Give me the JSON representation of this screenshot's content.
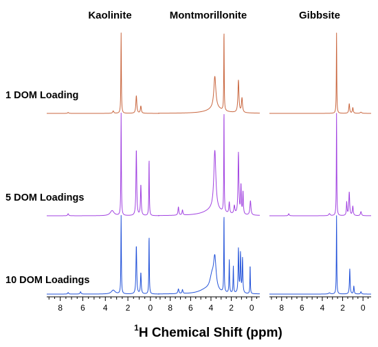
{
  "chart_data": {
    "type": "line",
    "figure_kind": "stacked 1H NMR spectra, 3 panels x 3 rows",
    "panels": [
      {
        "title": "Kaolinite"
      },
      {
        "title": "Montmorillonite"
      },
      {
        "title": "Gibbsite"
      }
    ],
    "rows": [
      {
        "label": "1 DOM Loading",
        "color": "#c8643c"
      },
      {
        "label": "5 DOM Loadings",
        "color": "#a040e0"
      },
      {
        "label": "10 DOM Loadings",
        "color": "#2050d8"
      }
    ],
    "x_axis": {
      "title_sup": "1",
      "title_main": "H Chemical Shift (ppm)",
      "range": [
        9.2,
        -0.8
      ],
      "reversed": true,
      "major_ticks": [
        "8",
        "6",
        "4",
        "2",
        "0"
      ]
    },
    "series": [
      {
        "panel": 0,
        "row": 0,
        "peaks": [
          {
            "x": 2.6,
            "h": 1.0,
            "w": 0.025
          },
          {
            "x": 1.25,
            "h": 0.22,
            "w": 0.05
          },
          {
            "x": 0.85,
            "h": 0.09,
            "w": 0.05
          },
          {
            "x": 3.3,
            "h": 0.03,
            "w": 0.06
          },
          {
            "x": 7.3,
            "h": 0.012,
            "w": 0.05
          }
        ]
      },
      {
        "panel": 0,
        "row": 1,
        "peaks": [
          {
            "x": 2.6,
            "h": 1.0,
            "w": 0.025
          },
          {
            "x": 1.25,
            "h": 0.65,
            "w": 0.04
          },
          {
            "x": 0.85,
            "h": 0.3,
            "w": 0.04
          },
          {
            "x": 0.12,
            "h": 0.56,
            "w": 0.025
          },
          {
            "x": 3.4,
            "h": 0.05,
            "w": 0.2
          },
          {
            "x": 7.3,
            "h": 0.02,
            "w": 0.05
          }
        ]
      },
      {
        "panel": 0,
        "row": 2,
        "peaks": [
          {
            "x": 2.6,
            "h": 1.0,
            "w": 0.025
          },
          {
            "x": 1.25,
            "h": 0.62,
            "w": 0.04
          },
          {
            "x": 0.85,
            "h": 0.27,
            "w": 0.04
          },
          {
            "x": 0.12,
            "h": 0.75,
            "w": 0.025
          },
          {
            "x": 3.3,
            "h": 0.05,
            "w": 0.2
          },
          {
            "x": 6.2,
            "h": 0.03,
            "w": 0.05
          },
          {
            "x": 7.3,
            "h": 0.02,
            "w": 0.05
          }
        ]
      },
      {
        "panel": 1,
        "row": 0,
        "peaks": [
          {
            "x": 2.72,
            "h": 1.0,
            "w": 0.025
          },
          {
            "x": 3.62,
            "h": 0.4,
            "w": 0.12
          },
          {
            "x": 1.3,
            "h": 0.4,
            "w": 0.06
          },
          {
            "x": 0.95,
            "h": 0.18,
            "w": 0.06
          },
          {
            "x": 3.6,
            "h": 0.06,
            "w": 0.9
          }
        ]
      },
      {
        "panel": 1,
        "row": 1,
        "peaks": [
          {
            "x": 2.72,
            "h": 1.0,
            "w": 0.025
          },
          {
            "x": 3.62,
            "h": 0.58,
            "w": 0.12
          },
          {
            "x": 1.3,
            "h": 0.6,
            "w": 0.05
          },
          {
            "x": 1.05,
            "h": 0.28,
            "w": 0.04
          },
          {
            "x": 0.85,
            "h": 0.22,
            "w": 0.04
          },
          {
            "x": 2.2,
            "h": 0.11,
            "w": 0.05
          },
          {
            "x": 1.7,
            "h": 0.08,
            "w": 0.06
          },
          {
            "x": 0.12,
            "h": 0.14,
            "w": 0.06
          },
          {
            "x": 7.2,
            "h": 0.08,
            "w": 0.05
          },
          {
            "x": 6.8,
            "h": 0.05,
            "w": 0.05
          },
          {
            "x": 3.8,
            "h": 0.06,
            "w": 1.0
          }
        ]
      },
      {
        "panel": 1,
        "row": 2,
        "peaks": [
          {
            "x": 2.72,
            "h": 1.0,
            "w": 0.025
          },
          {
            "x": 3.62,
            "h": 0.4,
            "w": 0.15
          },
          {
            "x": 3.9,
            "h": 0.18,
            "w": 0.25
          },
          {
            "x": 2.2,
            "h": 0.42,
            "w": 0.03
          },
          {
            "x": 1.8,
            "h": 0.34,
            "w": 0.03
          },
          {
            "x": 1.3,
            "h": 0.56,
            "w": 0.04
          },
          {
            "x": 1.1,
            "h": 0.5,
            "w": 0.04
          },
          {
            "x": 0.9,
            "h": 0.44,
            "w": 0.04
          },
          {
            "x": 0.15,
            "h": 0.37,
            "w": 0.025
          },
          {
            "x": 7.2,
            "h": 0.06,
            "w": 0.06
          },
          {
            "x": 6.8,
            "h": 0.05,
            "w": 0.05
          },
          {
            "x": 4.5,
            "h": 0.05,
            "w": 0.8
          }
        ]
      },
      {
        "panel": 2,
        "row": 0,
        "peaks": [
          {
            "x": 2.6,
            "h": 1.0,
            "w": 0.025
          },
          {
            "x": 1.35,
            "h": 0.12,
            "w": 0.05
          },
          {
            "x": 1.0,
            "h": 0.07,
            "w": 0.05
          },
          {
            "x": 0.2,
            "h": 0.015,
            "w": 0.08
          }
        ]
      },
      {
        "panel": 2,
        "row": 1,
        "peaks": [
          {
            "x": 2.6,
            "h": 1.0,
            "w": 0.025
          },
          {
            "x": 1.35,
            "h": 0.23,
            "w": 0.05
          },
          {
            "x": 1.6,
            "h": 0.13,
            "w": 0.04
          },
          {
            "x": 1.0,
            "h": 0.09,
            "w": 0.05
          },
          {
            "x": 0.2,
            "h": 0.04,
            "w": 0.06
          },
          {
            "x": 7.3,
            "h": 0.02,
            "w": 0.05
          },
          {
            "x": 3.3,
            "h": 0.02,
            "w": 0.08
          }
        ]
      },
      {
        "panel": 2,
        "row": 2,
        "peaks": [
          {
            "x": 2.6,
            "h": 1.0,
            "w": 0.025
          },
          {
            "x": 1.3,
            "h": 0.32,
            "w": 0.04
          },
          {
            "x": 0.9,
            "h": 0.1,
            "w": 0.04
          },
          {
            "x": 0.2,
            "h": 0.03,
            "w": 0.05
          },
          {
            "x": 3.3,
            "h": 0.015,
            "w": 0.1
          }
        ]
      }
    ]
  }
}
